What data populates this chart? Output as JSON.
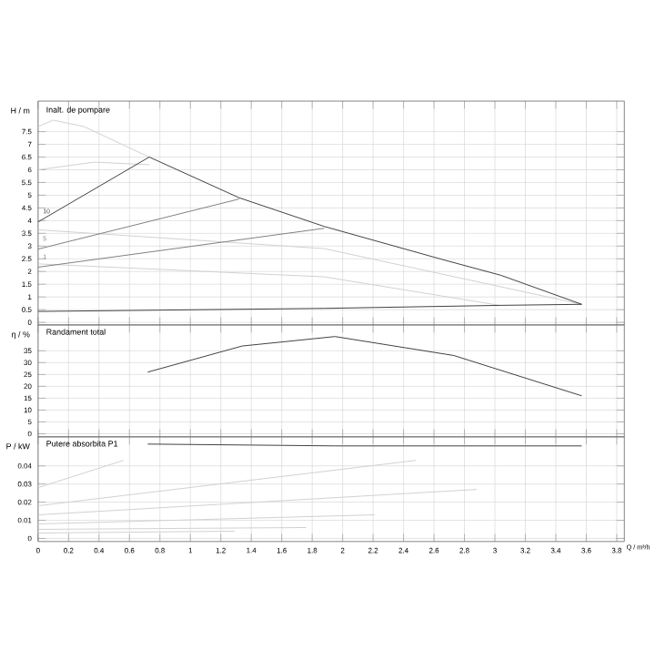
{
  "chart_data": [
    {
      "type": "line",
      "title": "Inalt. de pompare",
      "ylabel": "H / m",
      "xlim": [
        0,
        3.85
      ],
      "ylim": [
        -0.1,
        8.7
      ],
      "xticks": [
        0,
        0.2,
        0.4,
        0.6,
        0.8,
        1,
        1.2,
        1.4,
        1.6,
        1.8,
        2,
        2.2,
        2.4,
        2.6,
        2.8,
        3,
        3.2,
        3.4,
        3.6,
        3.8
      ],
      "yticks": [
        0,
        0.5,
        1,
        1.5,
        2,
        2.5,
        3,
        3.5,
        4,
        4.5,
        5,
        5.5,
        6,
        6.5,
        7,
        7.5
      ],
      "grid": true,
      "tick_labels": "y",
      "series": [
        {
          "color": "#d0d0d0",
          "x": [
            0,
            0.1,
            0.3,
            0.73
          ],
          "values": [
            7.7,
            7.95,
            7.7,
            6.5
          ]
        },
        {
          "color": "#d0d0d0",
          "x": [
            0,
            0.37,
            0.73
          ],
          "values": [
            6.0,
            6.3,
            6.2
          ]
        },
        {
          "color": "#d0d0d0",
          "x": [
            0,
            1.88,
            3.57
          ],
          "values": [
            3.64,
            2.9,
            0.71
          ]
        },
        {
          "color": "#d0d0d0",
          "x": [
            0,
            1.88,
            3.04
          ],
          "values": [
            2.3,
            1.79,
            0.66
          ]
        },
        {
          "name": "5",
          "color": "#808080",
          "x": [
            0,
            1.32
          ],
          "values": [
            2.88,
            4.85
          ]
        },
        {
          "name": "1",
          "color": "#808080",
          "x": [
            0,
            1.88
          ],
          "values": [
            2.17,
            3.7
          ]
        },
        {
          "name": "10",
          "color": "#404040",
          "x": [
            0,
            0.73,
            1.32,
            1.88,
            2.65,
            3.04,
            3.57
          ],
          "values": [
            3.95,
            6.5,
            4.9,
            3.77,
            2.48,
            1.85,
            0.71
          ]
        },
        {
          "color": "#404040",
          "x": [
            0,
            1.88,
            3.04,
            3.57
          ],
          "values": [
            0.43,
            0.55,
            0.67,
            0.71
          ]
        }
      ]
    },
    {
      "type": "line",
      "title": "Randament total",
      "ylabel": "η / %",
      "xlim": [
        0,
        3.85
      ],
      "ylim": [
        -1.3,
        45.9
      ],
      "xticks": [
        0,
        0.2,
        0.4,
        0.6,
        0.8,
        1,
        1.2,
        1.4,
        1.6,
        1.8,
        2,
        2.2,
        2.4,
        2.6,
        2.8,
        3,
        3.2,
        3.4,
        3.6,
        3.8
      ],
      "yticks": [
        0,
        5,
        10,
        15,
        20,
        25,
        30,
        35
      ],
      "grid": true,
      "tick_labels": "y",
      "series": [
        {
          "color": "#404040",
          "x": [
            0.72,
            1.34,
            1.95,
            2.73,
            3.57
          ],
          "values": [
            26,
            37,
            41,
            33,
            16
          ]
        }
      ]
    },
    {
      "type": "line",
      "title": "Putere absorbita P1",
      "ylabel": "P / kW",
      "xlabel": "Q / m³/h",
      "xlim": [
        0,
        3.85
      ],
      "ylim": [
        -0.0017,
        0.056
      ],
      "xticks": [
        0,
        0.2,
        0.4,
        0.6,
        0.8,
        1,
        1.2,
        1.4,
        1.6,
        1.8,
        2,
        2.2,
        2.4,
        2.6,
        2.8,
        3,
        3.2,
        3.4,
        3.6,
        3.8
      ],
      "yticks": [
        0,
        0.01,
        0.02,
        0.03,
        0.04
      ],
      "grid": true,
      "series": [
        {
          "color": "#d0d0d0",
          "x": [
            0,
            0.56
          ],
          "values": [
            0.028,
            0.043
          ]
        },
        {
          "color": "#d0d0d0",
          "x": [
            0,
            2.48
          ],
          "values": [
            0.018,
            0.043
          ]
        },
        {
          "color": "#d0d0d0",
          "x": [
            0,
            2.88
          ],
          "values": [
            0.013,
            0.027
          ]
        },
        {
          "color": "#d0d0d0",
          "x": [
            0,
            2.21
          ],
          "values": [
            0.008,
            0.013
          ]
        },
        {
          "color": "#d0d0d0",
          "x": [
            0,
            1.76
          ],
          "values": [
            0.005,
            0.006
          ]
        },
        {
          "color": "#d0d0d0",
          "x": [
            0,
            1.29
          ],
          "values": [
            0.003,
            0.004
          ]
        },
        {
          "color": "#404040",
          "x": [
            0.72,
            1.95,
            3.57
          ],
          "values": [
            0.052,
            0.051,
            0.051
          ]
        }
      ]
    }
  ]
}
